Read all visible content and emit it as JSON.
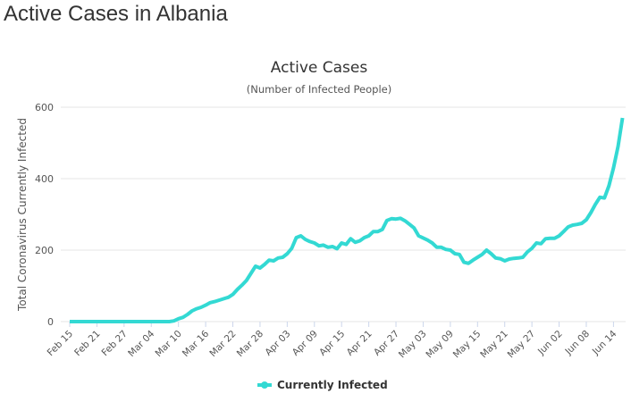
{
  "page_title": "Active Cases in Albania",
  "chart_data": {
    "type": "line",
    "title": "Active Cases",
    "subtitle": "(Number of Infected People)",
    "y_label": "Total Coronavirus Currently Infected",
    "categories": [
      "Feb 15",
      null,
      null,
      null,
      null,
      null,
      "Feb 21",
      null,
      null,
      null,
      null,
      null,
      "Feb 27",
      null,
      null,
      null,
      null,
      null,
      "Mar 04",
      null,
      null,
      null,
      null,
      null,
      "Mar 10",
      null,
      null,
      null,
      null,
      null,
      "Mar 16",
      null,
      null,
      null,
      null,
      null,
      "Mar 22",
      null,
      null,
      null,
      null,
      null,
      "Mar 28",
      null,
      null,
      null,
      null,
      null,
      "Apr 03",
      null,
      null,
      null,
      null,
      null,
      "Apr 09",
      null,
      null,
      null,
      null,
      null,
      "Apr 15",
      null,
      null,
      null,
      null,
      null,
      "Apr 21",
      null,
      null,
      null,
      null,
      null,
      "Apr 27",
      null,
      null,
      null,
      null,
      null,
      "May 03",
      null,
      null,
      null,
      null,
      null,
      "May 09",
      null,
      null,
      null,
      null,
      null,
      "May 15",
      null,
      null,
      null,
      null,
      null,
      "May 21",
      null,
      null,
      null,
      null,
      null,
      "May 27",
      null,
      null,
      null,
      null,
      null,
      "Jun 02",
      null,
      null,
      null,
      null,
      null,
      "Jun 08",
      null,
      null,
      null,
      null,
      null,
      "Jun 14",
      null,
      null
    ],
    "series": [
      {
        "name": "Currently Infected",
        "color": "#33d9d3",
        "values": [
          0,
          0,
          0,
          0,
          0,
          0,
          0,
          0,
          0,
          0,
          0,
          0,
          0,
          0,
          0,
          0,
          0,
          0,
          0,
          0,
          0,
          0,
          0,
          2,
          8,
          12,
          20,
          30,
          36,
          40,
          46,
          53,
          56,
          60,
          64,
          68,
          76,
          90,
          102,
          115,
          135,
          155,
          150,
          160,
          172,
          170,
          178,
          180,
          190,
          205,
          235,
          240,
          230,
          224,
          220,
          212,
          214,
          208,
          210,
          204,
          220,
          216,
          232,
          222,
          226,
          235,
          240,
          252,
          252,
          258,
          283,
          288,
          287,
          289,
          282,
          272,
          262,
          240,
          234,
          228,
          220,
          208,
          208,
          202,
          200,
          190,
          188,
          166,
          163,
          172,
          180,
          188,
          200,
          190,
          178,
          176,
          170,
          175,
          177,
          178,
          180,
          195,
          205,
          220,
          218,
          232,
          233,
          233,
          240,
          252,
          265,
          270,
          272,
          275,
          285,
          305,
          328,
          348,
          346,
          380,
          430,
          490,
          570
        ]
      }
    ],
    "ylim": [
      0,
      600
    ],
    "yticks": [
      0,
      200,
      400,
      600
    ],
    "grid": true
  }
}
